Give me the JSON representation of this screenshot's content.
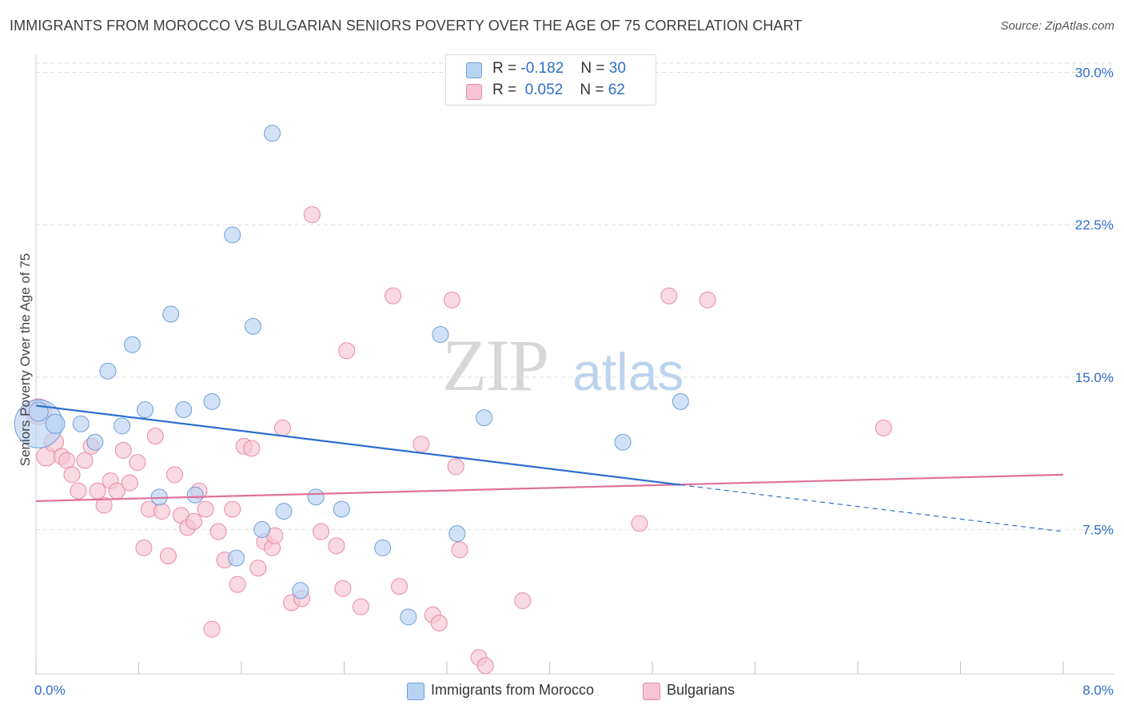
{
  "header": {
    "title": "IMMIGRANTS FROM MOROCCO VS BULGARIAN SENIORS POVERTY OVER THE AGE OF 75 CORRELATION CHART",
    "source": "Source: ZipAtlas.com"
  },
  "watermark": {
    "zip": "ZIP",
    "atlas": "atlas"
  },
  "legend": {
    "rows": [
      {
        "r_label": "R = ",
        "r_value": "-0.182",
        "n_label": "N = ",
        "n_value": "30"
      },
      {
        "r_label": "R = ",
        "r_value": "0.052",
        "n_label": "N = ",
        "n_value": "62"
      }
    ]
  },
  "bottom_legend": {
    "series0": "Immigrants from Morocco",
    "series1": "Bulgarians"
  },
  "colors": {
    "blue_fill": "#b8d3f2",
    "blue_stroke": "#6e9fd8",
    "blue_line": "#2c6fd1",
    "pink_fill": "#f6c4d3",
    "pink_stroke": "#e88aa8",
    "pink_line": "#e0709a",
    "axis_text": "#2f6dc8",
    "grid": "#dedede"
  },
  "chart_data": {
    "type": "scatter",
    "title": "IMMIGRANTS FROM MOROCCO VS BULGARIAN SENIORS POVERTY OVER THE AGE OF 75 CORRELATION CHART",
    "xlabel": "",
    "ylabel": "Seniors Poverty Over the Age of 75",
    "xlim": [
      0,
      8
    ],
    "ylim": [
      0.4,
      31.2
    ],
    "x_tick_labels": [
      "0.0%",
      "8.0%"
    ],
    "y_ticks": [
      7.5,
      15.0,
      22.5,
      30.0
    ],
    "y_tick_labels": [
      "7.5%",
      "15.0%",
      "22.5%",
      "30.0%"
    ],
    "grid": true,
    "legend_position": "top-center",
    "series": [
      {
        "name": "Immigrants from Morocco",
        "r": -0.182,
        "n": 30,
        "points": [
          [
            0.02,
            12.7
          ],
          [
            0.15,
            12.7
          ],
          [
            0.35,
            12.7
          ],
          [
            0.46,
            11.8
          ],
          [
            0.56,
            15.3
          ],
          [
            0.67,
            12.6
          ],
          [
            0.75,
            16.6
          ],
          [
            0.85,
            13.4
          ],
          [
            0.96,
            9.1
          ],
          [
            1.05,
            18.1
          ],
          [
            1.15,
            13.4
          ],
          [
            1.24,
            9.2
          ],
          [
            1.37,
            13.8
          ],
          [
            1.53,
            22.0
          ],
          [
            1.56,
            6.1
          ],
          [
            1.69,
            17.5
          ],
          [
            1.76,
            7.5
          ],
          [
            1.84,
            27.0
          ],
          [
            1.93,
            8.4
          ],
          [
            2.06,
            4.5
          ],
          [
            2.18,
            9.1
          ],
          [
            2.38,
            8.5
          ],
          [
            2.7,
            6.6
          ],
          [
            2.9,
            3.2
          ],
          [
            3.15,
            17.1
          ],
          [
            3.28,
            7.3
          ],
          [
            3.49,
            13.0
          ],
          [
            4.57,
            11.8
          ],
          [
            5.02,
            13.8
          ],
          [
            0.02,
            13.3
          ]
        ],
        "sizes": [
          30,
          12,
          10,
          10,
          10,
          10,
          10,
          10,
          10,
          10,
          10,
          10,
          10,
          10,
          10,
          10,
          10,
          10,
          10,
          10,
          10,
          10,
          10,
          10,
          10,
          10,
          10,
          10,
          10,
          12
        ],
        "trend": {
          "x": [
            0,
            5.02
          ],
          "y": [
            13.6,
            9.7
          ]
        },
        "trend_dashed": {
          "x": [
            5.02,
            8.0
          ],
          "y": [
            9.7,
            7.4
          ]
        }
      },
      {
        "name": "Bulgarians",
        "r": 0.052,
        "n": 62,
        "points": [
          [
            0.02,
            13.3
          ],
          [
            0.08,
            11.1
          ],
          [
            0.14,
            11.8
          ],
          [
            0.2,
            11.1
          ],
          [
            0.24,
            10.9
          ],
          [
            0.28,
            10.2
          ],
          [
            0.33,
            9.4
          ],
          [
            0.38,
            10.9
          ],
          [
            0.43,
            11.6
          ],
          [
            0.48,
            9.4
          ],
          [
            0.53,
            8.7
          ],
          [
            0.58,
            9.9
          ],
          [
            0.63,
            9.4
          ],
          [
            0.68,
            11.4
          ],
          [
            0.73,
            9.8
          ],
          [
            0.79,
            10.8
          ],
          [
            0.84,
            6.6
          ],
          [
            0.88,
            8.5
          ],
          [
            0.93,
            12.1
          ],
          [
            0.98,
            8.4
          ],
          [
            1.03,
            6.2
          ],
          [
            1.08,
            10.2
          ],
          [
            1.13,
            8.2
          ],
          [
            1.18,
            7.6
          ],
          [
            1.23,
            7.9
          ],
          [
            1.27,
            9.4
          ],
          [
            1.32,
            8.5
          ],
          [
            1.37,
            2.6
          ],
          [
            1.42,
            7.4
          ],
          [
            1.47,
            6.0
          ],
          [
            1.53,
            8.5
          ],
          [
            1.57,
            4.8
          ],
          [
            1.62,
            11.6
          ],
          [
            1.68,
            11.5
          ],
          [
            1.73,
            5.6
          ],
          [
            1.78,
            6.9
          ],
          [
            1.84,
            6.6
          ],
          [
            1.86,
            7.2
          ],
          [
            1.92,
            12.5
          ],
          [
            1.99,
            3.9
          ],
          [
            2.07,
            4.1
          ],
          [
            2.15,
            23.0
          ],
          [
            2.22,
            7.4
          ],
          [
            2.34,
            6.7
          ],
          [
            2.39,
            4.6
          ],
          [
            2.42,
            16.3
          ],
          [
            2.53,
            3.7
          ],
          [
            2.78,
            19.0
          ],
          [
            2.83,
            4.7
          ],
          [
            3.0,
            11.7
          ],
          [
            3.09,
            3.3
          ],
          [
            3.14,
            2.9
          ],
          [
            3.24,
            18.8
          ],
          [
            3.27,
            10.6
          ],
          [
            3.3,
            6.5
          ],
          [
            3.45,
            1.2
          ],
          [
            3.5,
            0.8
          ],
          [
            3.79,
            4.0
          ],
          [
            4.7,
            7.8
          ],
          [
            4.93,
            19.0
          ],
          [
            5.23,
            18.8
          ],
          [
            6.6,
            12.5
          ]
        ],
        "sizes": [
          16,
          12,
          12,
          10,
          10,
          10,
          10,
          10,
          10,
          10,
          10,
          10,
          10,
          10,
          10,
          10,
          10,
          10,
          10,
          10,
          10,
          10,
          10,
          10,
          10,
          10,
          10,
          10,
          10,
          10,
          10,
          10,
          10,
          10,
          10,
          10,
          10,
          10,
          10,
          10,
          10,
          10,
          10,
          10,
          10,
          10,
          10,
          10,
          10,
          10,
          10,
          10,
          10,
          10,
          10,
          10,
          10,
          10,
          10,
          10,
          10,
          10
        ],
        "trend": {
          "x": [
            0,
            8.0
          ],
          "y": [
            8.9,
            10.2
          ]
        }
      }
    ]
  }
}
